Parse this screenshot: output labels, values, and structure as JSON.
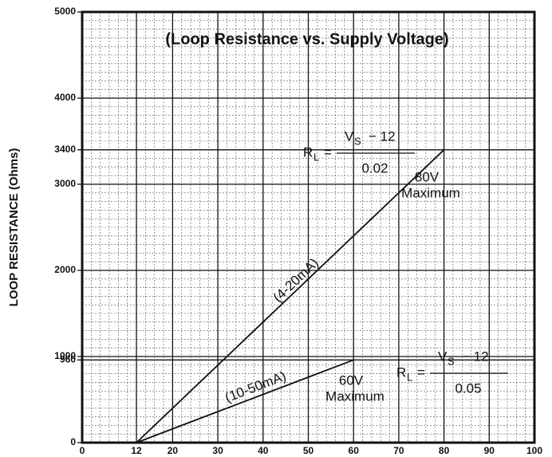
{
  "chart_data": {
    "type": "line",
    "title": "(Loop Resistance vs. Supply Voltage)",
    "y_label": "LOOP RESISTANCE (Ohms)",
    "xlim": [
      0,
      100
    ],
    "xticks": [
      0,
      12,
      20,
      30,
      40,
      50,
      60,
      70,
      80,
      90,
      100
    ],
    "ylim": [
      0,
      5000
    ],
    "yticks": [
      0,
      960,
      1000,
      2000,
      3000,
      3400,
      4000,
      5000
    ],
    "grid": true,
    "series": [
      {
        "name": "(4-20mA)",
        "color": "#111111",
        "x": [
          12,
          80
        ],
        "values": [
          0,
          3400
        ]
      },
      {
        "name": "(10-50mA)",
        "color": "#111111",
        "x": [
          12,
          60
        ],
        "values": [
          0,
          960
        ]
      }
    ],
    "annotations": {
      "max80": [
        "80V",
        "Maximum"
      ],
      "max60": [
        "60V",
        "Maximum"
      ],
      "formula1": {
        "lhs": "R",
        "lhs_sub": "L",
        "num": "V",
        "num_sub": "S",
        "num_rest": "− 12",
        "den": "0.02"
      },
      "formula2": {
        "lhs": "R",
        "lhs_sub": "L",
        "num": "V",
        "num_sub": "S",
        "num_rest": "− 12",
        "den": "0.05"
      }
    }
  }
}
